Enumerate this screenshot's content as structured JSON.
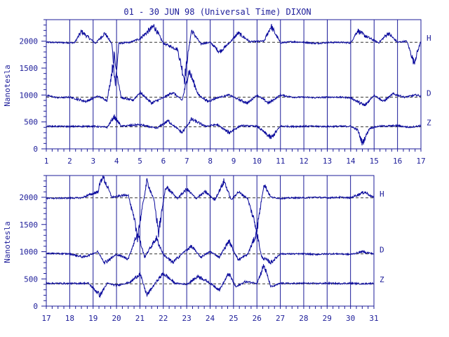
{
  "title": "01 - 30 JUN 98 (Universal Time) DIXON",
  "colors": {
    "axis": "#1c1c99",
    "trace": "#0a0a9c",
    "baseline": "#333333",
    "text": "#1c1c99"
  },
  "chart_data": [
    {
      "type": "line",
      "title": "01 - 30 JUN 98 (Universal Time) DIXON",
      "ylabel": "Nanotesla",
      "xlim": [
        1,
        17
      ],
      "ylim": [
        0,
        2400
      ],
      "x_ticks": [
        1,
        2,
        3,
        4,
        5,
        6,
        7,
        8,
        9,
        10,
        11,
        12,
        13,
        14,
        15,
        16,
        17
      ],
      "y_ticks": [
        0,
        500,
        1000,
        1500,
        2000
      ],
      "grid": "vertical day lines",
      "series": [
        {
          "name": "H",
          "baseline": 1980,
          "x": [
            1,
            2.2,
            2.5,
            3.1,
            3.5,
            3.8,
            3.95,
            4.1,
            4.6,
            5.0,
            5.6,
            6.0,
            6.6,
            6.9,
            7.2,
            7.6,
            8.0,
            8.4,
            8.8,
            9.2,
            9.7,
            10.3,
            10.6,
            11.0,
            11.5,
            12.0,
            12.5,
            13.0,
            13.5,
            14.0,
            14.3,
            14.6,
            15.2,
            15.6,
            16.0,
            16.4,
            16.7,
            17
          ],
          "values": [
            1980,
            1970,
            2180,
            1960,
            2150,
            1950,
            1200,
            1960,
            1980,
            2050,
            2280,
            1960,
            1850,
            1300,
            2200,
            1950,
            1980,
            1800,
            1960,
            2150,
            1990,
            2000,
            2280,
            1970,
            1990,
            1980,
            1960,
            1975,
            1980,
            1970,
            2200,
            2100,
            1970,
            2150,
            1980,
            2000,
            1600,
            2000
          ]
        },
        {
          "name": "D",
          "baseline": 960,
          "x": [
            1,
            1.5,
            2.0,
            2.7,
            3.2,
            3.6,
            3.9,
            4.2,
            4.7,
            5.0,
            5.5,
            6.0,
            6.4,
            6.8,
            7.1,
            7.5,
            7.9,
            8.3,
            8.8,
            9.2,
            9.6,
            10.0,
            10.5,
            11.0,
            11.5,
            12.0,
            12.5,
            13.0,
            13.5,
            14.0,
            14.6,
            15.0,
            15.4,
            15.8,
            16.3,
            16.8,
            17
          ],
          "values": [
            990,
            950,
            960,
            880,
            980,
            900,
            1700,
            950,
            900,
            1050,
            850,
            950,
            1050,
            900,
            1450,
            1000,
            880,
            950,
            1000,
            920,
            850,
            1000,
            850,
            1000,
            960,
            960,
            950,
            960,
            960,
            950,
            800,
            1000,
            880,
            1020,
            960,
            1000,
            980
          ]
        },
        {
          "name": "Z",
          "baseline": 410,
          "x": [
            1,
            2.0,
            3.0,
            3.6,
            3.9,
            4.2,
            5.0,
            5.7,
            6.2,
            6.8,
            7.2,
            7.8,
            8.3,
            8.8,
            9.3,
            10.0,
            10.6,
            11.0,
            11.5,
            12.0,
            13.0,
            14.0,
            14.3,
            14.5,
            14.8,
            15.2,
            16.0,
            16.5,
            17
          ],
          "values": [
            420,
            415,
            420,
            400,
            600,
            420,
            450,
            380,
            520,
            300,
            550,
            420,
            450,
            300,
            430,
            420,
            200,
            420,
            415,
            420,
            415,
            420,
            350,
            100,
            380,
            420,
            430,
            400,
            430
          ]
        }
      ]
    },
    {
      "type": "line",
      "ylabel": "Nanotesla",
      "xlim": [
        17,
        31
      ],
      "ylim": [
        0,
        2400
      ],
      "x_ticks": [
        17,
        18,
        19,
        20,
        21,
        22,
        23,
        24,
        25,
        26,
        27,
        28,
        29,
        30,
        31
      ],
      "y_ticks": [
        0,
        500,
        1000,
        1500,
        2000
      ],
      "grid": "vertical day lines",
      "series": [
        {
          "name": "H",
          "baseline": 1990,
          "x": [
            17,
            18.5,
            19.2,
            19.4,
            19.8,
            20.5,
            20.9,
            21.3,
            21.6,
            21.8,
            22.1,
            22.6,
            23.0,
            23.4,
            23.8,
            24.2,
            24.6,
            24.9,
            25.2,
            25.6,
            26.0,
            26.3,
            26.6,
            27.0,
            27.5,
            28.0,
            28.5,
            29.0,
            29.5,
            30.0,
            30.6,
            31
          ],
          "values": [
            1980,
            1990,
            2100,
            2400,
            2000,
            2050,
            1300,
            2300,
            1950,
            1350,
            2200,
            1980,
            2150,
            1980,
            2100,
            1950,
            2300,
            1950,
            2100,
            1980,
            1400,
            2250,
            2000,
            1980,
            1990,
            1990,
            2000,
            1990,
            2000,
            1990,
            2100,
            1990
          ]
        },
        {
          "name": "D",
          "baseline": 960,
          "x": [
            17,
            18.0,
            18.6,
            19.2,
            19.5,
            20.0,
            20.5,
            20.9,
            21.2,
            21.7,
            22.0,
            22.4,
            22.9,
            23.2,
            23.6,
            24.0,
            24.4,
            24.8,
            25.2,
            25.6,
            26.0,
            26.2,
            26.6,
            27.0,
            27.5,
            28.0,
            28.5,
            29.0,
            29.5,
            30.0,
            30.5,
            31
          ],
          "values": [
            970,
            960,
            900,
            1000,
            800,
            950,
            870,
            1350,
            900,
            1250,
            950,
            800,
            1000,
            1100,
            900,
            1000,
            900,
            1200,
            850,
            950,
            1350,
            900,
            800,
            960,
            960,
            960,
            950,
            960,
            960,
            950,
            1000,
            960
          ]
        },
        {
          "name": "Z",
          "baseline": 410,
          "x": [
            17,
            18.0,
            18.8,
            19.3,
            19.6,
            20.0,
            20.6,
            21.0,
            21.3,
            21.7,
            22.0,
            22.5,
            23.0,
            23.5,
            24.0,
            24.4,
            24.8,
            25.1,
            25.5,
            26.0,
            26.3,
            26.6,
            27.0,
            27.5,
            28.0,
            28.5,
            29.0,
            29.5,
            30.0,
            30.5,
            31
          ],
          "values": [
            420,
            415,
            420,
            200,
            420,
            380,
            440,
            600,
            200,
            450,
            600,
            420,
            400,
            550,
            420,
            300,
            600,
            350,
            450,
            420,
            750,
            350,
            420,
            415,
            420,
            415,
            420,
            415,
            420,
            410,
            420
          ]
        }
      ]
    }
  ]
}
